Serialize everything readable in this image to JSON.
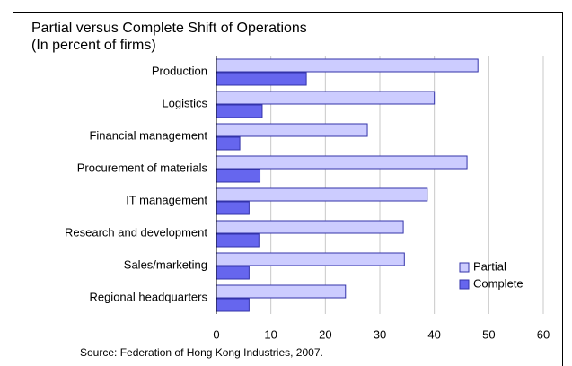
{
  "chart_data": {
    "type": "hbar",
    "title": "Partial versus Complete Shift of Operations",
    "subtitle": "(In percent of firms)",
    "source": "Source: Federation of Hong Kong Industries, 2007.",
    "categories": [
      "Production",
      "Logistics",
      "Financial management",
      "Procurement of materials",
      "IT management",
      "Research and development",
      "Sales/marketing",
      "Regional headquarters"
    ],
    "series": [
      {
        "name": "Partial",
        "color": "#ccccff",
        "values": [
          48,
          40,
          27.7,
          46,
          38.7,
          34.3,
          34.5,
          23.7
        ]
      },
      {
        "name": "Complete",
        "color": "#6666ee",
        "values": [
          16.5,
          8.4,
          4.3,
          8,
          6,
          7.8,
          6,
          6
        ]
      }
    ],
    "xlim": [
      0,
      60
    ],
    "xticks": [
      0,
      10,
      20,
      30,
      40,
      50,
      60
    ],
    "grid": true,
    "legend": "lower-right"
  }
}
